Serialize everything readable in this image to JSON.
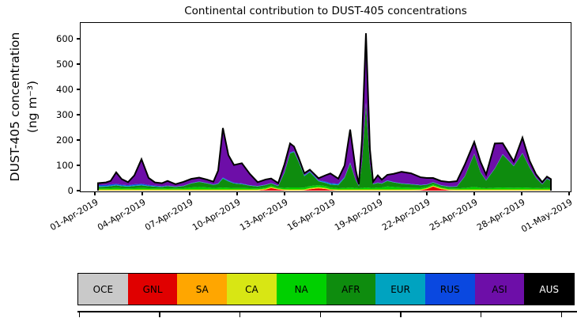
{
  "figure": {
    "title": "Continental contribution to DUST-405 concentrations",
    "ylabel_line1": "DUST-405 concentration",
    "ylabel_line2": "(ng m⁻³)"
  },
  "chart_data": {
    "type": "area",
    "stacked": true,
    "title": "Continental contribution to DUST-405 concentrations",
    "xlabel": "",
    "ylabel": "DUST-405 concentration (ng m⁻³)",
    "x_unit": "days since 01-Apr-2019 00:00",
    "xlim": [
      -0.85,
      30.05
    ],
    "ylim": [
      0,
      660
    ],
    "grid": false,
    "legend_position": "bottom-bar",
    "yticks": [
      0,
      100,
      200,
      300,
      400,
      500,
      600
    ],
    "xticks": {
      "days": [
        0,
        3,
        6,
        9,
        12,
        15,
        18,
        21,
        24,
        27,
        30
      ],
      "labels": [
        "01-Apr-2019",
        "04-Apr-2019",
        "07-Apr-2019",
        "10-Apr-2019",
        "13-Apr-2019",
        "16-Apr-2019",
        "19-Apr-2019",
        "22-Apr-2019",
        "25-Apr-2019",
        "28-Apr-2019",
        "01-May-2019"
      ]
    },
    "x": [
      0.2,
      0.7,
      1.0,
      1.35,
      1.7,
      2.1,
      2.5,
      2.95,
      3.4,
      3.8,
      4.25,
      4.6,
      5.1,
      5.6,
      6.1,
      6.6,
      7.1,
      7.5,
      7.8,
      8.1,
      8.45,
      8.8,
      9.3,
      9.8,
      10.3,
      10.8,
      11.15,
      11.6,
      12.0,
      12.35,
      12.6,
      12.9,
      13.25,
      13.6,
      14.15,
      14.6,
      14.9,
      15.4,
      15.8,
      16.15,
      16.5,
      16.7,
      16.9,
      17.15,
      17.4,
      17.6,
      17.9,
      18.15,
      18.5,
      18.9,
      19.4,
      20.0,
      20.6,
      21.0,
      21.4,
      21.9,
      22.4,
      22.9,
      23.4,
      24.0,
      24.4,
      24.75,
      25.3,
      25.8,
      26.5,
      27.05,
      27.5,
      27.9,
      28.3,
      28.6,
      28.85
    ],
    "series": [
      {
        "name": "OCE",
        "color": "#c9c9c9",
        "values": [
          0,
          0,
          0,
          0,
          0,
          0,
          0,
          0,
          0,
          0,
          0,
          0,
          0,
          0,
          0,
          0,
          0,
          0,
          0,
          0,
          0,
          0,
          0,
          0,
          0,
          0,
          0,
          0,
          0,
          0,
          0,
          0,
          0,
          0,
          0,
          0,
          0,
          0,
          0,
          0,
          0,
          0,
          0,
          0,
          0,
          0,
          0,
          0,
          0,
          0,
          0,
          0,
          0,
          0,
          0,
          0,
          0,
          0,
          0,
          0,
          0,
          0,
          0,
          0,
          0,
          0,
          0,
          0,
          0,
          0,
          0
        ]
      },
      {
        "name": "GNL",
        "color": "#e00000",
        "values": [
          0.5,
          0.5,
          0.5,
          0.5,
          0.5,
          0.5,
          0.5,
          0.5,
          0.5,
          0.5,
          0.5,
          0.5,
          0.5,
          0.5,
          0.5,
          0.5,
          0.5,
          0.5,
          0.5,
          0.5,
          0.5,
          0.5,
          0.5,
          0.5,
          0.5,
          3,
          10,
          4,
          1,
          0.5,
          0.5,
          0.5,
          1,
          5,
          9,
          6,
          2,
          0.5,
          0.5,
          0.5,
          0.5,
          0.5,
          0.5,
          0.5,
          0.5,
          0.5,
          0.5,
          0.5,
          0.5,
          0.5,
          0.5,
          0.5,
          1,
          6,
          16,
          6,
          1,
          0.5,
          0.5,
          0.5,
          0.5,
          0.5,
          0.5,
          0.5,
          0.5,
          0.5,
          0.5,
          0.5,
          0.5,
          0.5,
          0.5
        ]
      },
      {
        "name": "SA",
        "color": "#ffa600",
        "values": [
          1,
          1,
          1,
          1,
          1,
          1,
          1,
          1,
          1,
          1,
          1,
          1,
          1,
          1,
          1,
          1,
          1,
          1,
          1,
          1,
          1,
          1,
          1,
          1,
          1,
          2,
          2,
          1,
          1,
          1,
          1,
          1,
          1,
          2,
          2,
          2,
          1,
          1,
          1,
          1,
          1,
          1,
          1,
          1,
          1,
          1,
          1,
          1,
          1,
          1,
          1,
          1,
          1,
          1,
          1,
          1,
          1,
          1,
          1,
          1,
          1,
          1,
          1,
          1,
          1,
          1,
          1,
          1,
          1,
          1,
          1
        ]
      },
      {
        "name": "CA",
        "color": "#d8e614",
        "values": [
          3,
          3,
          3,
          3,
          3,
          3,
          3,
          3,
          3,
          3,
          3,
          3,
          3,
          3,
          3,
          3,
          3,
          3,
          3,
          3,
          3,
          3,
          3,
          3,
          3,
          3,
          3,
          3,
          3,
          3,
          3,
          3,
          3,
          3,
          3,
          3,
          3,
          3,
          3,
          3,
          3,
          3,
          3,
          3,
          3,
          3,
          3,
          3,
          3,
          3,
          3,
          3,
          3,
          3,
          3,
          3,
          3,
          3,
          3,
          3,
          3,
          3,
          3,
          3,
          3,
          3,
          3,
          3,
          3,
          3,
          3
        ]
      },
      {
        "name": "NA",
        "color": "#00d000",
        "values": [
          4,
          4,
          5,
          6,
          5,
          4,
          5,
          6,
          5,
          4,
          4,
          5,
          4,
          5,
          8,
          10,
          8,
          6,
          7,
          8,
          7,
          6,
          6,
          5,
          4,
          5,
          5,
          4,
          6,
          8,
          8,
          8,
          7,
          8,
          8,
          7,
          6,
          5,
          6,
          8,
          6,
          5,
          6,
          8,
          7,
          6,
          8,
          8,
          12,
          10,
          8,
          7,
          6,
          5,
          5,
          4,
          4,
          4,
          6,
          10,
          7,
          5,
          7,
          8,
          7,
          8,
          7,
          6,
          5,
          7,
          6
        ]
      },
      {
        "name": "AFR",
        "color": "#0e8c0e",
        "values": [
          6,
          7,
          8,
          10,
          8,
          7,
          9,
          10,
          8,
          7,
          6,
          8,
          6,
          8,
          16,
          20,
          16,
          12,
          15,
          35,
          25,
          18,
          15,
          10,
          8,
          9,
          8,
          6,
          60,
          135,
          140,
          100,
          45,
          55,
          15,
          12,
          12,
          12,
          40,
          95,
          30,
          8,
          100,
          330,
          90,
          15,
          18,
          15,
          22,
          18,
          15,
          13,
          10,
          8,
          7,
          6,
          6,
          7,
          45,
          130,
          60,
          30,
          75,
          130,
          85,
          135,
          80,
          40,
          15,
          35,
          28
        ]
      },
      {
        "name": "EUR",
        "color": "#00a3c0",
        "values": [
          3,
          3,
          3,
          3,
          3,
          3,
          3,
          3,
          2,
          2,
          1,
          1,
          1,
          1,
          1,
          1,
          1,
          1,
          1,
          2,
          2,
          1,
          1,
          1,
          1,
          1,
          1,
          1,
          2,
          2,
          2,
          2,
          2,
          2,
          2,
          3,
          3,
          3,
          2,
          2,
          1,
          1,
          1,
          2,
          1,
          1,
          1,
          1,
          1,
          1,
          1,
          1,
          1,
          1,
          1,
          1,
          1,
          1,
          1,
          1,
          1,
          1,
          1,
          1,
          1,
          1,
          1,
          1,
          1,
          1,
          1
        ]
      },
      {
        "name": "RUS",
        "color": "#0a48e0",
        "values": [
          4,
          4,
          4,
          4,
          3,
          3,
          4,
          4,
          3,
          2,
          2,
          2,
          1,
          1,
          1,
          1,
          1,
          1,
          2,
          3,
          2,
          2,
          2,
          1,
          1,
          1,
          1,
          1,
          2,
          2,
          2,
          2,
          2,
          2,
          2,
          3,
          3,
          3,
          2,
          2,
          1,
          1,
          2,
          3,
          2,
          1,
          1,
          1,
          1,
          1,
          1,
          1,
          1,
          1,
          1,
          1,
          1,
          1,
          1,
          1,
          1,
          1,
          1,
          1,
          1,
          1,
          1,
          1,
          1,
          1,
          1
        ]
      },
      {
        "name": "ASI",
        "color": "#6d0ea8",
        "values": [
          8,
          10,
          14,
          45,
          22,
          12,
          35,
          97,
          28,
          13,
          12,
          18,
          9,
          15,
          16,
          15,
          13,
          11,
          50,
          195,
          100,
          70,
          80,
          45,
          15,
          20,
          18,
          10,
          30,
          35,
          18,
          12,
          8,
          6,
          8,
          25,
          38,
          20,
          45,
          130,
          40,
          6,
          90,
          275,
          60,
          8,
          28,
          14,
          22,
          32,
          45,
          42,
          30,
          25,
          16,
          16,
          17,
          20,
          45,
          46,
          40,
          22,
          98,
          43,
          17,
          60,
          25,
          13,
          7,
          7,
          5
        ]
      },
      {
        "name": "AUS",
        "color": "#000000",
        "values": [
          0,
          0,
          0,
          0,
          0,
          0,
          0,
          0,
          0,
          0,
          0,
          0,
          0,
          0,
          0,
          0,
          0,
          0,
          0,
          0,
          0,
          0,
          0,
          0,
          0,
          0,
          0,
          0,
          0,
          0,
          0,
          0,
          0,
          0,
          0,
          0,
          0,
          0,
          0,
          0,
          0,
          0,
          0,
          0,
          0,
          0,
          0,
          0,
          0,
          0,
          0,
          0,
          0,
          0,
          0,
          0,
          0,
          0,
          0,
          0,
          0,
          0,
          0,
          0,
          0,
          0,
          0,
          0,
          0,
          0,
          0
        ]
      }
    ],
    "outline_color": "#000000"
  },
  "legend": {
    "tick_count": 7,
    "items": [
      {
        "label": "OCE",
        "color": "#c9c9c9",
        "text": "#000000"
      },
      {
        "label": "GNL",
        "color": "#e00000",
        "text": "#000000"
      },
      {
        "label": "SA",
        "color": "#ffa600",
        "text": "#000000"
      },
      {
        "label": "CA",
        "color": "#d8e614",
        "text": "#000000"
      },
      {
        "label": "NA",
        "color": "#00d000",
        "text": "#000000"
      },
      {
        "label": "AFR",
        "color": "#0e8c0e",
        "text": "#000000"
      },
      {
        "label": "EUR",
        "color": "#00a3c0",
        "text": "#000000"
      },
      {
        "label": "RUS",
        "color": "#0a48e0",
        "text": "#000000"
      },
      {
        "label": "ASI",
        "color": "#6d0ea8",
        "text": "#000000"
      },
      {
        "label": "AUS",
        "color": "#000000",
        "text": "#ffffff"
      }
    ]
  }
}
